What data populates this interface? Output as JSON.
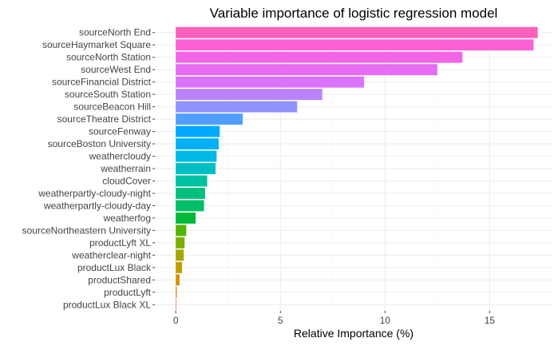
{
  "chart_data": {
    "type": "bar",
    "orientation": "horizontal",
    "title": "Variable importance of logistic regression model",
    "xlabel": "Relative Importance (%)",
    "ylabel": "",
    "xlim": [
      -1.0,
      18.0
    ],
    "xticks": [
      0,
      5,
      10,
      15
    ],
    "grid": true,
    "legend": "none",
    "categories": [
      "sourceNorth End",
      "sourceHaymarket Square",
      "sourceNorth Station",
      "sourceWest End",
      "sourceFinancial District",
      "sourceSouth Station",
      "sourceBeacon Hill",
      "sourceTheatre District",
      "sourceFenway",
      "sourceBoston University",
      "weathercloudy",
      "weatherrain",
      "cloudCover",
      "weatherpartly-cloudy-night",
      "weatherpartly-cloudy-day",
      "weatherfog",
      "sourceNortheastern University",
      "productLyft XL",
      "weatherclear-night",
      "productLux Black",
      "productShared",
      "productLyft",
      "productLux Black XL"
    ],
    "values": [
      17.3,
      17.1,
      13.7,
      12.5,
      9.0,
      7.0,
      5.8,
      3.2,
      2.1,
      2.05,
      1.95,
      1.9,
      1.5,
      1.4,
      1.35,
      0.95,
      0.5,
      0.42,
      0.38,
      0.3,
      0.18,
      0.05,
      0.03
    ],
    "colors": [
      "#FF62BC",
      "#FA62D4",
      "#F365E6",
      "#E76BF3",
      "#DB72FB",
      "#B983FF",
      "#8F91FF",
      "#529EFF",
      "#00A9FF",
      "#00B0F6",
      "#00B8E7",
      "#00BFC4",
      "#00C1A3",
      "#00BF7D",
      "#00BE67",
      "#00BA38",
      "#53B400",
      "#7CAE00",
      "#A3A500",
      "#C09B00",
      "#D89000",
      "#E7861B",
      "#F8766D"
    ]
  }
}
